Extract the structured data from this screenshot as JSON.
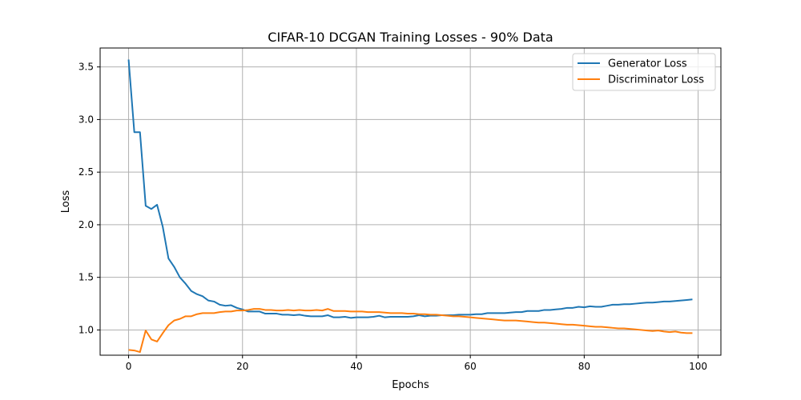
{
  "chart_data": {
    "type": "line",
    "title": "CIFAR-10 DCGAN Training Losses - 90% Data",
    "xlabel": "Epochs",
    "ylabel": "Loss",
    "xlim": [
      -5,
      104
    ],
    "ylim": [
      0.76,
      3.68
    ],
    "xticks": [
      0,
      20,
      40,
      60,
      80,
      100
    ],
    "xtick_labels": [
      "0",
      "20",
      "40",
      "60",
      "80",
      "100"
    ],
    "yticks": [
      1.0,
      1.5,
      2.0,
      2.5,
      3.0,
      3.5
    ],
    "ytick_labels": [
      "1.0",
      "1.5",
      "2.0",
      "2.5",
      "3.0",
      "3.5"
    ],
    "grid": true,
    "legend_position": "top-right",
    "series": [
      {
        "name": "Generator Loss",
        "color": "#1f77b4",
        "x": [
          0,
          1,
          2,
          3,
          4,
          5,
          6,
          7,
          8,
          9,
          10,
          11,
          12,
          13,
          14,
          15,
          16,
          17,
          18,
          19,
          20,
          21,
          22,
          23,
          24,
          25,
          26,
          27,
          28,
          29,
          30,
          31,
          32,
          33,
          34,
          35,
          36,
          37,
          38,
          39,
          40,
          41,
          42,
          43,
          44,
          45,
          46,
          47,
          48,
          49,
          50,
          51,
          52,
          53,
          54,
          55,
          56,
          57,
          58,
          59,
          60,
          61,
          62,
          63,
          64,
          65,
          66,
          67,
          68,
          69,
          70,
          71,
          72,
          73,
          74,
          75,
          76,
          77,
          78,
          79,
          80,
          81,
          82,
          83,
          84,
          85,
          86,
          87,
          88,
          89,
          90,
          91,
          92,
          93,
          94,
          95,
          96,
          97,
          98,
          99
        ],
        "values": [
          3.57,
          2.88,
          2.88,
          2.18,
          2.15,
          2.19,
          1.98,
          1.68,
          1.6,
          1.5,
          1.44,
          1.37,
          1.34,
          1.32,
          1.28,
          1.27,
          1.24,
          1.23,
          1.235,
          1.21,
          1.195,
          1.175,
          1.175,
          1.175,
          1.155,
          1.155,
          1.155,
          1.145,
          1.145,
          1.14,
          1.145,
          1.135,
          1.13,
          1.13,
          1.13,
          1.14,
          1.12,
          1.12,
          1.125,
          1.115,
          1.12,
          1.12,
          1.12,
          1.125,
          1.135,
          1.12,
          1.125,
          1.125,
          1.125,
          1.125,
          1.13,
          1.14,
          1.13,
          1.135,
          1.135,
          1.14,
          1.14,
          1.14,
          1.145,
          1.145,
          1.145,
          1.15,
          1.15,
          1.16,
          1.16,
          1.16,
          1.16,
          1.165,
          1.17,
          1.17,
          1.18,
          1.18,
          1.18,
          1.19,
          1.19,
          1.195,
          1.2,
          1.21,
          1.21,
          1.22,
          1.215,
          1.225,
          1.22,
          1.22,
          1.23,
          1.24,
          1.24,
          1.245,
          1.245,
          1.25,
          1.255,
          1.26,
          1.26,
          1.265,
          1.27,
          1.27,
          1.275,
          1.28,
          1.285,
          1.29
        ]
      },
      {
        "name": "Discriminator Loss",
        "color": "#ff7f0e",
        "x": [
          0,
          1,
          2,
          3,
          4,
          5,
          6,
          7,
          8,
          9,
          10,
          11,
          12,
          13,
          14,
          15,
          16,
          17,
          18,
          19,
          20,
          21,
          22,
          23,
          24,
          25,
          26,
          27,
          28,
          29,
          30,
          31,
          32,
          33,
          34,
          35,
          36,
          37,
          38,
          39,
          40,
          41,
          42,
          43,
          44,
          45,
          46,
          47,
          48,
          49,
          50,
          51,
          52,
          53,
          54,
          55,
          56,
          57,
          58,
          59,
          60,
          61,
          62,
          63,
          64,
          65,
          66,
          67,
          68,
          69,
          70,
          71,
          72,
          73,
          74,
          75,
          76,
          77,
          78,
          79,
          80,
          81,
          82,
          83,
          84,
          85,
          86,
          87,
          88,
          89,
          90,
          91,
          92,
          93,
          94,
          95,
          96,
          97,
          98,
          99
        ],
        "values": [
          0.81,
          0.805,
          0.79,
          0.995,
          0.91,
          0.89,
          0.97,
          1.045,
          1.09,
          1.105,
          1.13,
          1.13,
          1.15,
          1.16,
          1.16,
          1.16,
          1.17,
          1.175,
          1.175,
          1.185,
          1.185,
          1.19,
          1.2,
          1.2,
          1.19,
          1.19,
          1.185,
          1.185,
          1.19,
          1.185,
          1.19,
          1.185,
          1.185,
          1.19,
          1.185,
          1.2,
          1.18,
          1.18,
          1.18,
          1.175,
          1.175,
          1.175,
          1.17,
          1.17,
          1.17,
          1.165,
          1.16,
          1.16,
          1.16,
          1.155,
          1.155,
          1.15,
          1.15,
          1.145,
          1.145,
          1.14,
          1.135,
          1.13,
          1.13,
          1.125,
          1.12,
          1.115,
          1.11,
          1.105,
          1.1,
          1.095,
          1.09,
          1.09,
          1.09,
          1.085,
          1.08,
          1.075,
          1.07,
          1.07,
          1.065,
          1.06,
          1.055,
          1.05,
          1.05,
          1.045,
          1.04,
          1.035,
          1.03,
          1.03,
          1.025,
          1.02,
          1.015,
          1.015,
          1.01,
          1.005,
          1.0,
          0.995,
          0.99,
          0.995,
          0.985,
          0.98,
          0.985,
          0.975,
          0.97,
          0.97
        ]
      }
    ]
  }
}
